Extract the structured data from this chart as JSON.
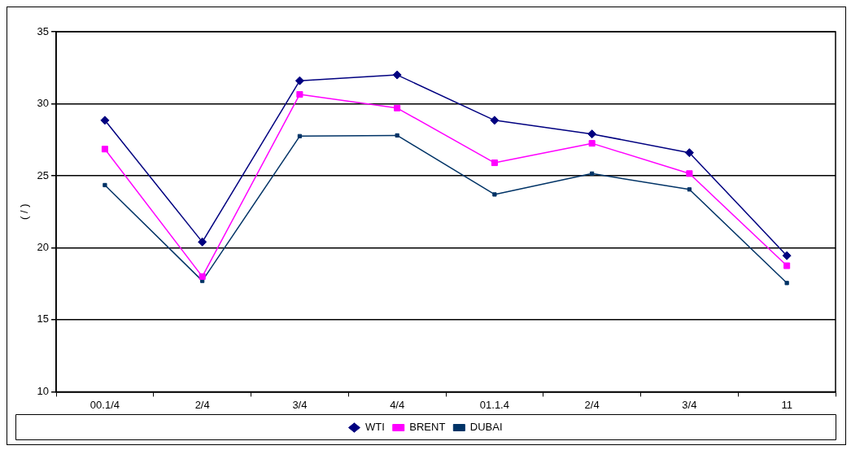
{
  "chart_data": {
    "type": "line",
    "ylabel": "( / )",
    "categories": [
      "00.1/4",
      "2/4",
      "3/4",
      "4/4",
      "01.1.4",
      "2/4",
      "3/4",
      "11"
    ],
    "series": [
      {
        "name": "WTI",
        "color": "#000080",
        "marker": "diamond",
        "values": [
          28.85,
          20.4,
          31.6,
          32.0,
          28.85,
          27.9,
          26.6,
          19.45
        ]
      },
      {
        "name": "BRENT",
        "color": "#ff00ff",
        "marker": "square",
        "values": [
          26.85,
          18.0,
          30.65,
          29.7,
          25.9,
          27.25,
          25.15,
          18.75
        ]
      },
      {
        "name": "DUBAI",
        "color": "#003366",
        "marker": "square",
        "values": [
          24.35,
          17.7,
          27.75,
          27.8,
          23.7,
          25.15,
          24.05,
          17.55
        ]
      }
    ],
    "ylim": [
      10,
      35
    ],
    "yticks": [
      10,
      15,
      20,
      25,
      30,
      35
    ],
    "grid": "y",
    "legend": "bottom",
    "line_style": "solid"
  }
}
